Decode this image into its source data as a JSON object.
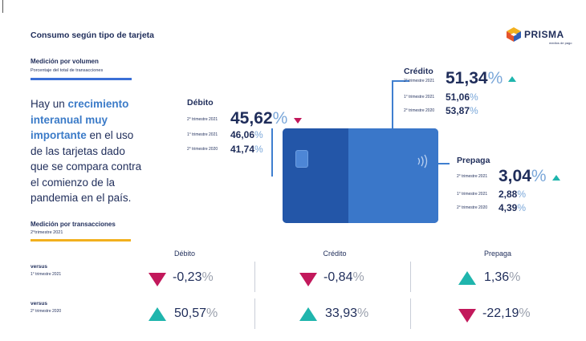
{
  "header": {
    "title": "Consumo según tipo de tarjeta",
    "brand": "PRISMA",
    "brand_tagline": "medios de pago"
  },
  "volume": {
    "title": "Medición por volumen",
    "subtitle": "Porcentaje del total de transacciones"
  },
  "headline": {
    "line1_a": "Hay un ",
    "line1_b": "crecimiento",
    "line2": "interanual muy",
    "line3_a": "importante",
    "line3_b": " en el uso",
    "line4": "de las tarjetas dado",
    "line5": "que se compara contra",
    "line6": "el comienzo de la",
    "line7": "pandemia en el país."
  },
  "debito": {
    "title": "Débito",
    "rows": [
      {
        "label": "2° trimestre 2021",
        "value": "45,62",
        "unit": "%",
        "trend": "down"
      },
      {
        "label": "1° trimestre 2021",
        "value": "46,06",
        "unit": "%"
      },
      {
        "label": "2° trimestre 2020",
        "value": "41,74",
        "unit": "%"
      }
    ]
  },
  "credito": {
    "title": "Crédito",
    "rows": [
      {
        "label": "2° trimestre 2021",
        "value": "51,34",
        "unit": "%",
        "trend": "up"
      },
      {
        "label": "1° trimestre 2021",
        "value": "51,06",
        "unit": "%"
      },
      {
        "label": "2° trimestre 2020",
        "value": "53,87",
        "unit": "%"
      }
    ]
  },
  "prepaga": {
    "title": "Prepaga",
    "rows": [
      {
        "label": "2° trimestre 2021",
        "value": "3,04",
        "unit": "%",
        "trend": "up"
      },
      {
        "label": "1° trimestre 2021",
        "value": "2,88",
        "unit": "%"
      },
      {
        "label": "2° trimestre 2020",
        "value": "4,39",
        "unit": "%"
      }
    ]
  },
  "transactions": {
    "title": "Medición por transacciones",
    "subtitle": "2°trimestre 2021"
  },
  "comparison": {
    "columns": [
      "Débito",
      "Crédito",
      "Prepaga"
    ],
    "rows": [
      {
        "label": "versus",
        "sublabel": "1° trimestre 2021",
        "cells": [
          {
            "value": "-0,23",
            "unit": "%",
            "trend": "down"
          },
          {
            "value": "-0,84",
            "unit": "%",
            "trend": "down"
          },
          {
            "value": "1,36",
            "unit": "%",
            "trend": "up"
          }
        ]
      },
      {
        "label": "versus",
        "sublabel": "2° trimestre 2020",
        "cells": [
          {
            "value": "50,57",
            "unit": "%",
            "trend": "up"
          },
          {
            "value": "33,93",
            "unit": "%",
            "trend": "up"
          },
          {
            "value": "-22,19",
            "unit": "%",
            "trend": "down"
          }
        ]
      }
    ]
  },
  "colors": {
    "navy": "#1f2d5a",
    "blue": "#3b7bc8",
    "down": "#c2185b",
    "up": "#1fb5ad",
    "accent_yellow": "#f2b01e"
  }
}
